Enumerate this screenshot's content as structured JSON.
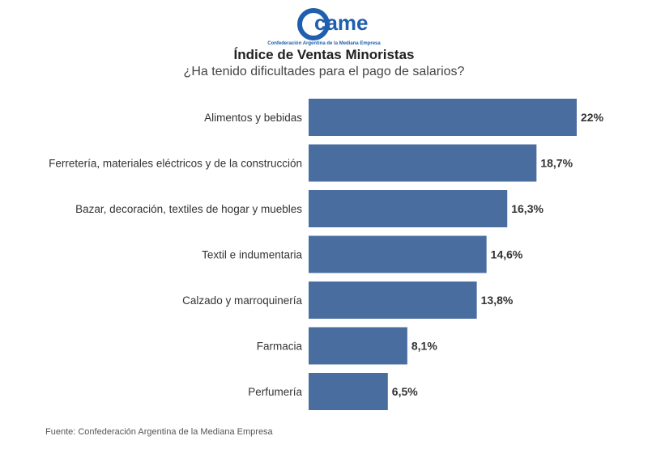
{
  "logo": {
    "wordmark": "came",
    "tagline": "Confederación Argentina de la Mediana Empresa",
    "color": "#1f5fad"
  },
  "header": {
    "title": "Índice de Ventas Minoristas",
    "subtitle": "¿Ha tenido dificultades para el pago de salarios?"
  },
  "source": "Fuente: Confederación Argentina de la Mediana Empresa",
  "chart_data": {
    "type": "bar",
    "orientation": "horizontal",
    "categories": [
      "Alimentos y bebidas",
      "Ferretería, materiales eléctricos y de la construcción",
      "Bazar, decoración, textiles de hogar y muebles",
      "Textil e indumentaria",
      "Calzado y marroquinería",
      "Farmacia",
      "Perfumería"
    ],
    "values": [
      22,
      18.7,
      16.3,
      14.6,
      13.8,
      8.1,
      6.5
    ],
    "value_labels": [
      "22%",
      "18,7%",
      "16,3%",
      "14,6%",
      "13,8%",
      "8,1%",
      "6,5%"
    ],
    "title": "Índice de Ventas Minoristas",
    "subtitle": "¿Ha tenido dificultades para el pago de salarios?",
    "xlim": [
      0,
      22
    ],
    "grid": false,
    "legend": "none",
    "bar_color": "#4a6d9f"
  }
}
